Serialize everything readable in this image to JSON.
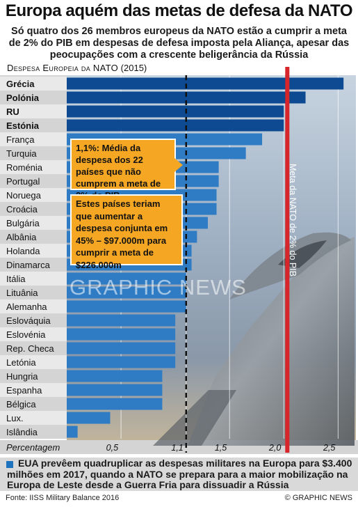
{
  "title": "Europa aquém das metas de defesa da NATO",
  "subtitle": "Só quatro dos 26 membros europeus da NATO estão a cumprir a meta de 2% do PIB em despesas de defesa imposta pela Aliança, apesar das peocupações com a crescente beligerância da Rússia",
  "chart_heading": {
    "main": "Despesa Europeia da NATO",
    "year": "(2015)"
  },
  "callouts": {
    "average": "1,1%: Média da despesa dos 22 países que não cumprem a meta de 2% do PIB",
    "increase": "Estes países teriam que aumentar a despesa conjunta em 45% – $97.000m para cumprir a meta de $226.000m"
  },
  "target_label": "Meta da NATO de 2% do PIB",
  "watermark": "GRAPHIC NEWS",
  "footnote": "EUA prevêem quadruplicar as despesas militares na Europa para $3.400 milhões em 2017, quando a NATO se prepara para a maior mobilização na Europa de Leste desde a Guerra Fria para dissuadir a Rússia",
  "source": "Fonte: IISS Military Balance 2016",
  "credit": "© GRAPHIC NEWS",
  "colors": {
    "bar_dark": "#0d4a91",
    "bar_light": "#2f7cc4",
    "target_line": "#d7262b",
    "callout": "#f5a623",
    "footnote_bg": "#d9d9d9"
  },
  "chart_data": {
    "type": "bar",
    "orientation": "horizontal",
    "title": "Despesa Europeia da NATO (2015)",
    "xlabel": "Percentagem",
    "xlim": [
      0,
      2.6
    ],
    "xticks": [
      "0,5",
      "1,1",
      "1,5",
      "2,0",
      "2,5"
    ],
    "xtick_values": [
      0.5,
      1.1,
      1.5,
      2.0,
      2.5
    ],
    "categories": [
      "Grécia",
      "Polónia",
      "RU",
      "Estónia",
      "França",
      "Turquia",
      "Roménia",
      "Portugal",
      "Noruega",
      "Croácia",
      "Bulgária",
      "Albânia",
      "Holanda",
      "Dinamarca",
      "Itália",
      "Lituânia",
      "Alemanha",
      "Eslováquia",
      "Eslovénia",
      "Rep. Checa",
      "Letónia",
      "Hungria",
      "Espanha",
      "Bélgica",
      "Lux.",
      "Islândia"
    ],
    "highlighted": [
      "Grécia",
      "Polónia",
      "RU",
      "Estónia"
    ],
    "values": [
      2.55,
      2.2,
      2.0,
      2.0,
      1.8,
      1.65,
      1.4,
      1.4,
      1.38,
      1.38,
      1.3,
      1.2,
      1.15,
      1.15,
      1.1,
      1.1,
      1.1,
      1.0,
      1.0,
      1.0,
      1.0,
      0.88,
      0.88,
      0.88,
      0.4,
      0.1
    ],
    "reference_lines": [
      {
        "value": 1.1,
        "style": "dashed",
        "label": "Média 1,1%"
      },
      {
        "value": 2.0,
        "style": "solid",
        "label": "Meta da NATO de 2% do PIB"
      }
    ],
    "grid": "vertical"
  }
}
